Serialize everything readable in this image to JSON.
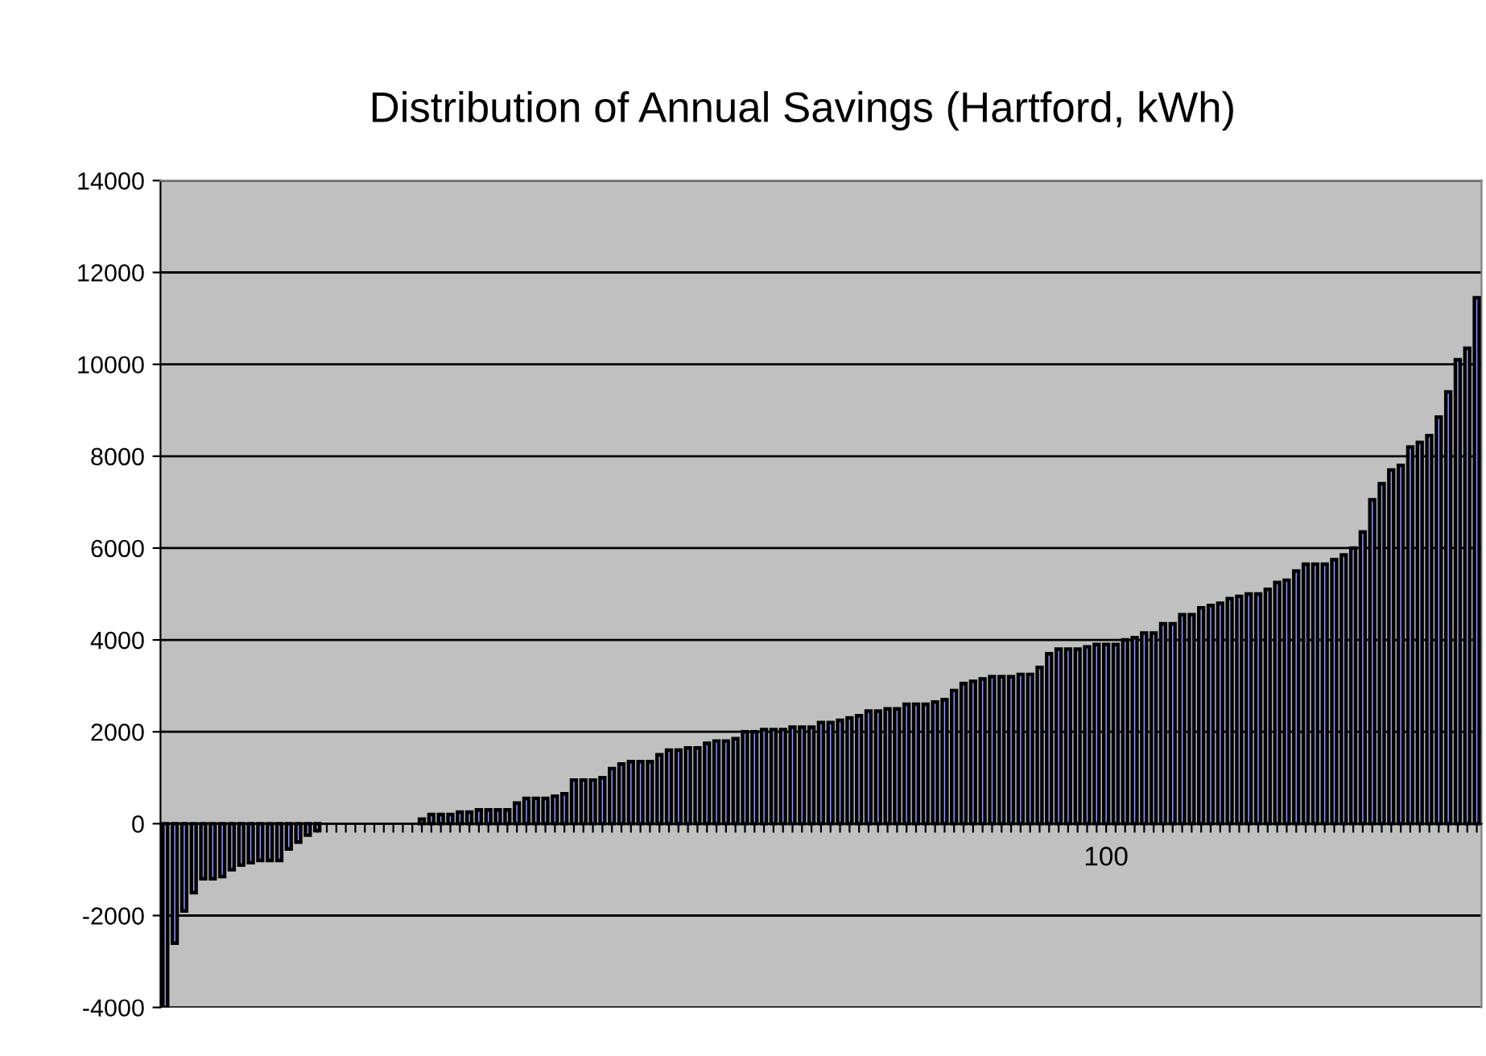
{
  "chart_data": {
    "type": "bar",
    "title": "Distribution of Annual Savings (Hartford, kWh)",
    "categories": [
      null,
      null,
      null,
      null,
      null,
      null,
      null,
      null,
      null,
      null,
      null,
      null,
      null,
      null,
      null,
      null,
      null,
      null,
      null,
      null,
      null,
      null,
      null,
      null,
      null,
      null,
      null,
      null,
      null,
      null,
      null,
      null,
      null,
      null,
      null,
      null,
      null,
      null,
      null,
      null,
      null,
      null,
      null,
      null,
      null,
      null,
      null,
      null,
      null,
      null,
      null,
      null,
      null,
      null,
      null,
      null,
      null,
      null,
      null,
      null,
      null,
      null,
      null,
      null,
      null,
      null,
      null,
      null,
      null,
      null,
      null,
      null,
      null,
      null,
      null,
      null,
      null,
      null,
      null,
      null,
      null,
      null,
      null,
      null,
      null,
      null,
      null,
      null,
      null,
      null,
      null,
      null,
      null,
      null,
      null,
      null,
      null,
      null,
      null,
      "100",
      null,
      null,
      null,
      null,
      null,
      null,
      null,
      null,
      null,
      null,
      null,
      null,
      null,
      null,
      null,
      null,
      null,
      null,
      null,
      null,
      null,
      null,
      null,
      null,
      null,
      null,
      null,
      null,
      null,
      null,
      null,
      null,
      null,
      null,
      null,
      null,
      null,
      null,
      null
    ],
    "values": [
      -4000,
      -2600,
      -1900,
      -1500,
      -1200,
      -1200,
      -1150,
      -1000,
      -900,
      -850,
      -800,
      -800,
      -800,
      -550,
      -400,
      -250,
      -150,
      0,
      0,
      0,
      0,
      0,
      0,
      0,
      0,
      0,
      0,
      100,
      200,
      200,
      200,
      250,
      250,
      300,
      300,
      300,
      300,
      450,
      550,
      550,
      550,
      600,
      650,
      950,
      950,
      950,
      1000,
      1200,
      1300,
      1350,
      1350,
      1350,
      1500,
      1600,
      1600,
      1650,
      1650,
      1750,
      1800,
      1800,
      1850,
      2000,
      2000,
      2050,
      2050,
      2050,
      2100,
      2100,
      2100,
      2200,
      2200,
      2250,
      2300,
      2350,
      2450,
      2450,
      2500,
      2500,
      2600,
      2600,
      2600,
      2650,
      2700,
      2900,
      3050,
      3100,
      3150,
      3200,
      3200,
      3200,
      3250,
      3250,
      3400,
      3700,
      3800,
      3800,
      3800,
      3850,
      3900,
      3900,
      3900,
      4000,
      4050,
      4150,
      4150,
      4350,
      4350,
      4550,
      4550,
      4700,
      4750,
      4800,
      4900,
      4950,
      5000,
      5000,
      5100,
      5250,
      5300,
      5500,
      5650,
      5650,
      5650,
      5750,
      5850,
      6000,
      6350,
      7050,
      7400,
      7700,
      7800,
      8200,
      8300,
      8450,
      8850,
      9400,
      10100,
      10350,
      11450
    ],
    "color": "#9999ff",
    "ylim": [
      -4000,
      14000
    ],
    "yticks": [
      -4000,
      -2000,
      0,
      2000,
      4000,
      6000,
      8000,
      10000,
      12000,
      14000
    ],
    "grid": "y"
  }
}
